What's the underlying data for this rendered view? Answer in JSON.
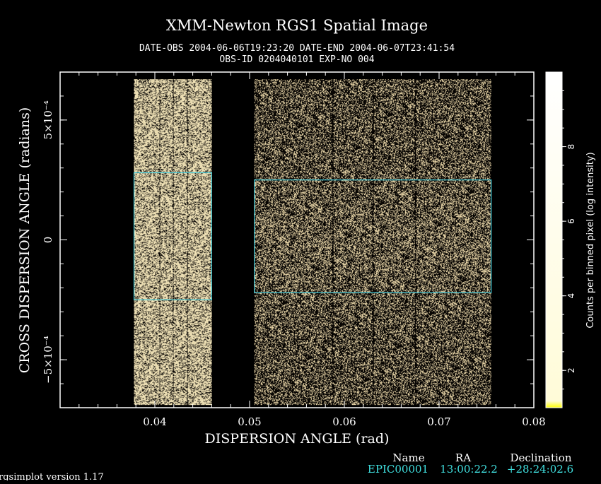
{
  "chart_data": {
    "type": "heatmap",
    "title": "XMM-Newton  RGS1 Spatial Image",
    "subtitle_line1": "DATE-OBS 2004-06-06T19:23:20   DATE-END 2004-06-07T23:41:54",
    "subtitle_line2": "OBS-ID 0204040101 EXP-NO 004",
    "xlabel": "DISPERSION ANGLE (rad)",
    "ylabel": "CROSS DISPERSION ANGLE (radians)",
    "xlim": [
      0.03,
      0.08
    ],
    "ylim": [
      -0.0007,
      0.0007
    ],
    "x_ticks": [
      {
        "value": 0.04,
        "label": "0.04"
      },
      {
        "value": 0.05,
        "label": "0.05"
      },
      {
        "value": 0.06,
        "label": "0.06"
      },
      {
        "value": 0.07,
        "label": "0.07"
      },
      {
        "value": 0.08,
        "label": "0.08"
      }
    ],
    "y_ticks": [
      {
        "value": 0.0005,
        "label": "5×10⁻⁴"
      },
      {
        "value": 0,
        "label": "0"
      },
      {
        "value": -0.0005,
        "label": "−5×10⁻⁴"
      }
    ],
    "colorbar": {
      "label": "Counts per binned pixel (log intensity)",
      "range": [
        1,
        10
      ],
      "ticks": [
        {
          "value": 2,
          "label": "2"
        },
        {
          "value": 4,
          "label": "4"
        },
        {
          "value": 6,
          "label": "6"
        },
        {
          "value": 8,
          "label": "8"
        }
      ],
      "colors": [
        "#ffff00",
        "#ffffff"
      ]
    },
    "image_regions": [
      {
        "x0": 0.0378,
        "x1": 0.046,
        "y0": -0.00069,
        "y1": 0.00067,
        "color": "#fdeec0",
        "density": 0.72
      },
      {
        "x0": 0.0505,
        "x1": 0.0755,
        "y0": -0.00069,
        "y1": 0.00067,
        "color": "#f4e0b0",
        "density": 0.34
      }
    ],
    "extraction_regions": [
      {
        "x0": 0.0378,
        "x1": 0.046,
        "y0": -0.00025,
        "y1": 0.00028,
        "color": "#40c8d8"
      },
      {
        "x0": 0.0505,
        "x1": 0.0755,
        "y0": -0.00022,
        "y1": 0.00025,
        "color": "#40c8d8"
      }
    ]
  },
  "source_table": {
    "headers": [
      "Name",
      "RA",
      "Declination"
    ],
    "row": [
      "EPIC00001",
      "13:00:22.2",
      "+28:24:02.6"
    ]
  },
  "footer": "rgsimplot version 1.17"
}
